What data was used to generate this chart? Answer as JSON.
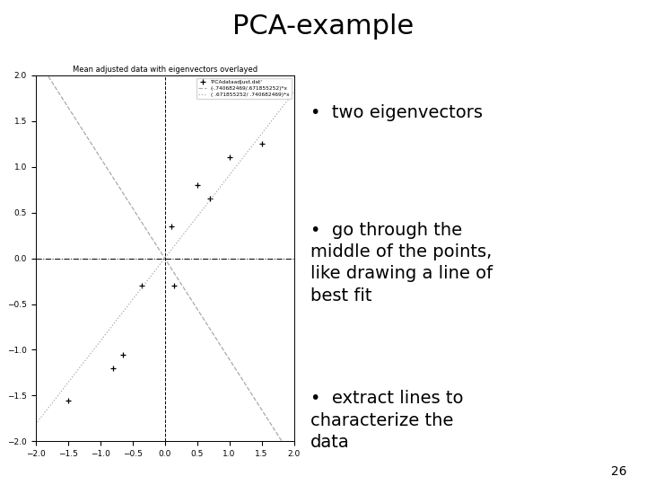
{
  "title": "PCA-example",
  "slide_bg": "#ffffff",
  "red_bar_color": "#cc0000",
  "plot_title": "Mean adjusted data with eigenvectors overlayed",
  "points_x": [
    0.1,
    0.5,
    0.7,
    1.0,
    1.5,
    -0.35,
    0.15,
    -0.65,
    -0.8,
    -1.5
  ],
  "points_y": [
    0.35,
    0.8,
    0.65,
    1.1,
    1.25,
    -0.3,
    -0.3,
    -1.05,
    -1.2,
    -1.55
  ],
  "xlim": [
    -2,
    2
  ],
  "ylim": [
    -2,
    2
  ],
  "xticks": [
    -2,
    -1.5,
    -1,
    -0.5,
    0,
    0.5,
    1,
    1.5,
    2
  ],
  "yticks": [
    -2,
    -1.5,
    -1,
    -0.5,
    0,
    0.5,
    1,
    1.5,
    2
  ],
  "legend_labels": [
    "'PCAdataadjust.dat'",
    "(-.740682469/.671855252)*x",
    "( .671855252/ .740682469)*x"
  ],
  "bullet_points": [
    "two eigenvectors",
    "go through the\nmiddle of the points,\nlike drawing a line of\nbest fit",
    "extract lines to\ncharacterize the\ndata"
  ],
  "page_number": "26",
  "font_color": "#000000",
  "title_fontsize": 22,
  "bullet_fontsize": 14
}
